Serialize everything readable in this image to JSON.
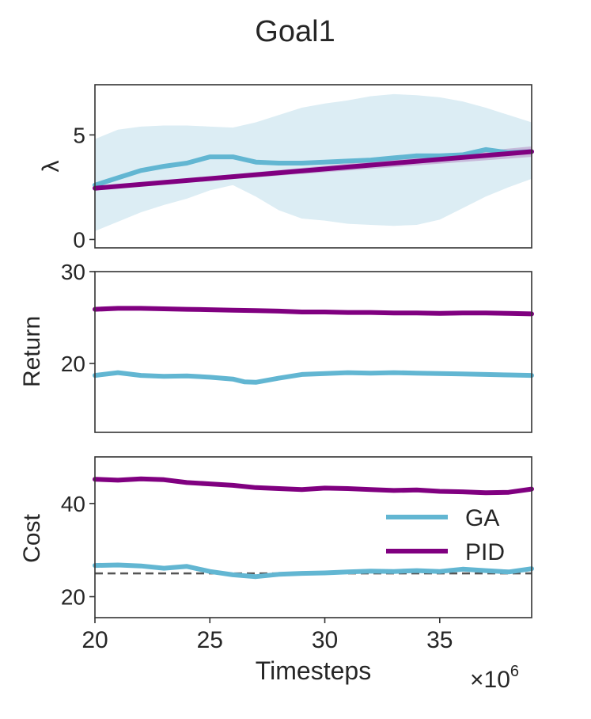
{
  "title": "Goal1",
  "chart_data": [
    {
      "type": "line",
      "ylabel": "λ",
      "xlim": [
        20,
        39
      ],
      "ylim": [
        -0.4,
        7.4
      ],
      "yticks": [
        0,
        5
      ],
      "series": [
        {
          "name": "GA",
          "color": "#62b6d2",
          "x": [
            20,
            21,
            22,
            23,
            24,
            25,
            26,
            27,
            28,
            29,
            30,
            31,
            32,
            33,
            34,
            35,
            36,
            37,
            38,
            39
          ],
          "y": [
            2.6,
            2.95,
            3.3,
            3.5,
            3.65,
            3.95,
            3.95,
            3.7,
            3.65,
            3.65,
            3.7,
            3.75,
            3.8,
            3.9,
            4.0,
            4.0,
            4.05,
            4.3,
            4.15,
            4.2
          ],
          "band_low": [
            0.4,
            0.85,
            1.3,
            1.65,
            1.95,
            2.35,
            2.6,
            2.05,
            1.4,
            1.0,
            0.9,
            0.75,
            0.7,
            0.65,
            0.7,
            0.95,
            1.5,
            2.05,
            2.5,
            2.9
          ],
          "band_high": [
            4.8,
            5.25,
            5.4,
            5.45,
            5.45,
            5.4,
            5.35,
            5.6,
            5.95,
            6.3,
            6.5,
            6.65,
            6.85,
            6.95,
            6.9,
            6.8,
            6.6,
            6.3,
            5.95,
            5.6
          ]
        },
        {
          "name": "PID",
          "color": "#800080",
          "x": [
            20,
            39
          ],
          "y": [
            2.45,
            4.2
          ],
          "band_low": [
            2.4,
            3.95
          ],
          "band_high": [
            2.5,
            4.45
          ]
        }
      ]
    },
    {
      "type": "line",
      "ylabel": "Return",
      "xlim": [
        20,
        39
      ],
      "ylim": [
        12.5,
        30
      ],
      "yticks": [
        20,
        30
      ],
      "series": [
        {
          "name": "GA",
          "color": "#62b6d2",
          "x": [
            20,
            21,
            22,
            23,
            24,
            25,
            26,
            26.5,
            27,
            28,
            29,
            30,
            31,
            32,
            33,
            34,
            35,
            36,
            37,
            38,
            39
          ],
          "y": [
            18.7,
            19.0,
            18.7,
            18.6,
            18.65,
            18.5,
            18.3,
            18.0,
            17.95,
            18.4,
            18.8,
            18.9,
            19.0,
            18.95,
            19.0,
            18.95,
            18.9,
            18.85,
            18.8,
            18.75,
            18.7
          ]
        },
        {
          "name": "PID",
          "color": "#800080",
          "x": [
            20,
            21,
            22,
            23,
            24,
            25,
            26,
            27,
            28,
            29,
            30,
            31,
            32,
            33,
            34,
            35,
            36,
            37,
            38,
            39
          ],
          "y": [
            25.9,
            26.0,
            26.0,
            25.95,
            25.9,
            25.85,
            25.8,
            25.75,
            25.7,
            25.6,
            25.6,
            25.55,
            25.55,
            25.5,
            25.5,
            25.45,
            25.5,
            25.5,
            25.45,
            25.4
          ]
        }
      ]
    },
    {
      "type": "line",
      "xlabel": "Timesteps",
      "ylabel": "Cost",
      "multiplier": "×10",
      "multiplier_exp": "6",
      "xlim": [
        20,
        39
      ],
      "ylim": [
        15.5,
        50
      ],
      "yticks": [
        20,
        40
      ],
      "xticks": [
        20,
        25,
        30,
        35
      ],
      "threshold": 25,
      "legend": "right",
      "series": [
        {
          "name": "GA",
          "color": "#62b6d2",
          "x": [
            20,
            21,
            22,
            23,
            24,
            25,
            26,
            27,
            28,
            29,
            30,
            31,
            32,
            33,
            34,
            35,
            36,
            37,
            38,
            39
          ],
          "y": [
            26.7,
            26.8,
            26.6,
            26.1,
            26.5,
            25.4,
            24.7,
            24.3,
            24.8,
            25.0,
            25.1,
            25.3,
            25.5,
            25.4,
            25.6,
            25.4,
            25.9,
            25.6,
            25.3,
            26.0
          ]
        },
        {
          "name": "PID",
          "color": "#800080",
          "x": [
            20,
            21,
            22,
            23,
            24,
            25,
            26,
            27,
            28,
            29,
            30,
            31,
            32,
            33,
            34,
            35,
            36,
            37,
            38,
            39
          ],
          "y": [
            45.2,
            45.0,
            45.3,
            45.1,
            44.5,
            44.2,
            43.9,
            43.4,
            43.2,
            43.0,
            43.3,
            43.2,
            43.0,
            42.8,
            42.9,
            42.6,
            42.5,
            42.3,
            42.4,
            43.1
          ]
        }
      ]
    }
  ]
}
